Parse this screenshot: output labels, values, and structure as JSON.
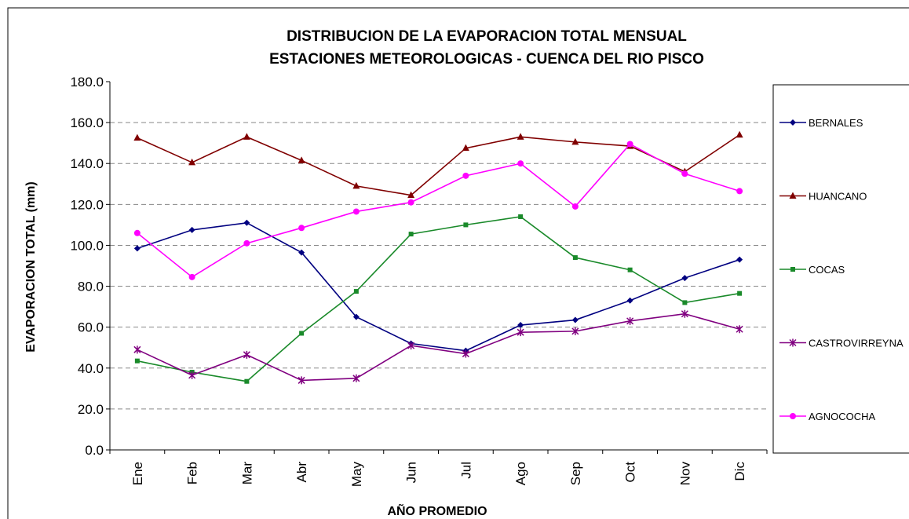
{
  "chart_data": {
    "type": "line",
    "title": [
      "DISTRIBUCION DE LA EVAPORACION TOTAL MENSUAL",
      "ESTACIONES METEOROLOGICAS - CUENCA DEL RIO PISCO"
    ],
    "x_label": "AÑO PROMEDIO",
    "y_label": "EVAPORACION TOTAL (mm)",
    "categories": [
      "Ene",
      "Feb",
      "Mar",
      "Abr",
      "May",
      "Jun",
      "Jul",
      "Ago",
      "Sep",
      "Oct",
      "Nov",
      "Dic"
    ],
    "ylim": [
      0,
      180
    ],
    "yticks": [
      {
        "value": 0,
        "label": "0.0"
      },
      {
        "value": 20,
        "label": "20.0"
      },
      {
        "value": 40,
        "label": "40.0"
      },
      {
        "value": 60,
        "label": "60.0"
      },
      {
        "value": 80,
        "label": "80.0"
      },
      {
        "value": 100,
        "label": "100.0"
      },
      {
        "value": 120,
        "label": "120.0"
      },
      {
        "value": 140,
        "label": "140.0"
      },
      {
        "value": 160,
        "label": "160.0"
      },
      {
        "value": 180,
        "label": "180.0"
      }
    ],
    "grid": true,
    "legend": "right",
    "series": [
      {
        "name": "BERNALES",
        "color": "#000080",
        "marker": "diamond",
        "values": [
          98.5,
          107.5,
          111,
          96.5,
          65,
          52,
          48.5,
          61,
          63.5,
          73,
          84,
          93
        ]
      },
      {
        "name": "HUANCANO",
        "color": "#800000",
        "marker": "triangle",
        "values": [
          152.5,
          140.5,
          153,
          141.5,
          129,
          124.5,
          147.5,
          153,
          150.5,
          148.5,
          136,
          154
        ]
      },
      {
        "name": "COCAS",
        "color": "#1a8a2a",
        "marker": "square",
        "values": [
          43.5,
          38,
          33.5,
          57,
          77.5,
          105.5,
          110,
          114,
          94,
          88,
          72,
          76.5
        ]
      },
      {
        "name": "CASTROVIRREYNA",
        "color": "#800080",
        "marker": "star",
        "values": [
          49,
          36.5,
          46.5,
          34,
          35,
          51,
          47,
          57.5,
          58,
          63,
          66.5,
          59
        ]
      },
      {
        "name": "AGNOCOCHA",
        "color": "#ff00ff",
        "marker": "circle",
        "values": [
          106,
          84.5,
          101,
          108.5,
          116.5,
          121,
          134,
          140,
          119,
          149.5,
          135,
          126.5
        ]
      }
    ]
  }
}
